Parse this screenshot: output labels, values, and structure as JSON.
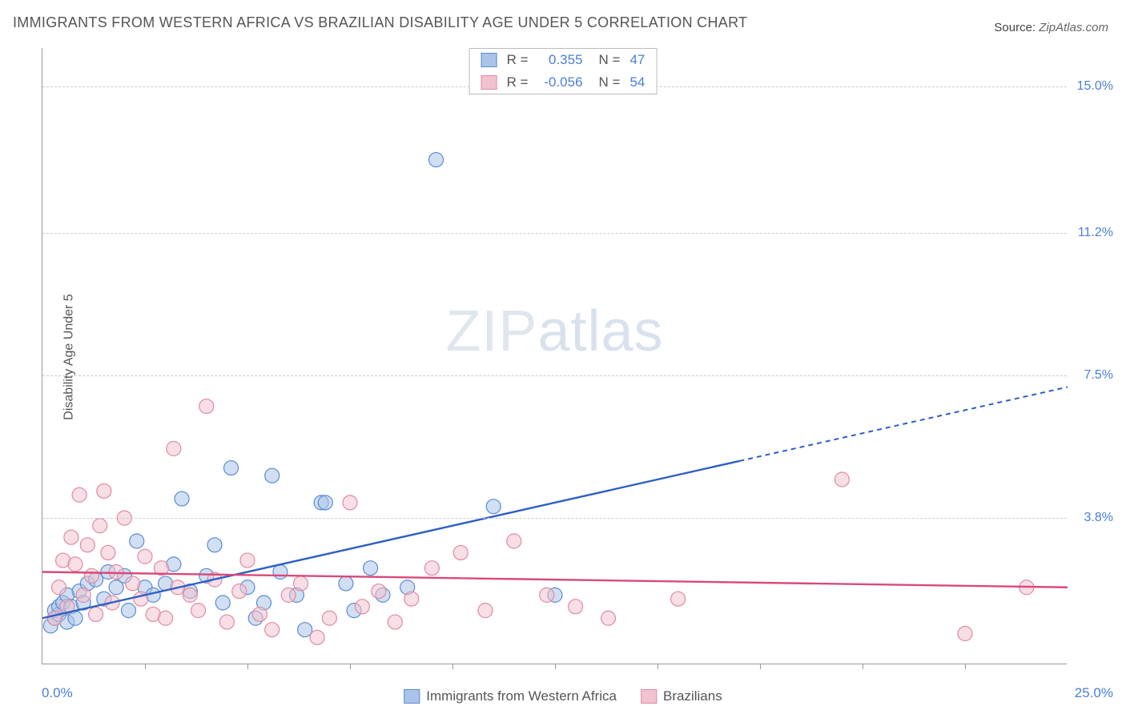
{
  "title": "IMMIGRANTS FROM WESTERN AFRICA VS BRAZILIAN DISABILITY AGE UNDER 5 CORRELATION CHART",
  "source_label": "Source:",
  "source_value": "ZipAtlas.com",
  "y_axis_title": "Disability Age Under 5",
  "watermark": "ZIPatlas",
  "chart": {
    "type": "scatter",
    "xlim": [
      0,
      25
    ],
    "ylim": [
      0,
      16
    ],
    "x_start_label": "0.0%",
    "x_end_label": "25.0%",
    "y_ticks": [
      {
        "v": 3.8,
        "label": "3.8%"
      },
      {
        "v": 7.5,
        "label": "7.5%"
      },
      {
        "v": 11.2,
        "label": "11.2%"
      },
      {
        "v": 15.0,
        "label": "15.0%"
      }
    ],
    "x_tick_step": 2.5,
    "background_color": "#ffffff",
    "grid_color": "#cccccc",
    "marker_radius": 9,
    "marker_opacity": 0.55,
    "series": [
      {
        "name": "Immigrants from Western Africa",
        "fill": "#a9c4e8",
        "stroke": "#5a8bd6",
        "line_color": "#2d5fc4",
        "r_value": "0.355",
        "n_value": "47",
        "trend": {
          "x1": 0,
          "y1": 1.2,
          "x2": 25,
          "y2": 7.2,
          "solid_until_x": 17
        },
        "points": [
          [
            0.2,
            1.0
          ],
          [
            0.3,
            1.2
          ],
          [
            0.3,
            1.4
          ],
          [
            0.4,
            1.3
          ],
          [
            0.4,
            1.5
          ],
          [
            0.5,
            1.6
          ],
          [
            0.6,
            1.1
          ],
          [
            0.6,
            1.8
          ],
          [
            0.7,
            1.5
          ],
          [
            0.8,
            1.2
          ],
          [
            0.9,
            1.9
          ],
          [
            1.0,
            1.6
          ],
          [
            1.1,
            2.1
          ],
          [
            1.3,
            2.2
          ],
          [
            1.5,
            1.7
          ],
          [
            1.6,
            2.4
          ],
          [
            1.8,
            2.0
          ],
          [
            2.0,
            2.3
          ],
          [
            2.1,
            1.4
          ],
          [
            2.3,
            3.2
          ],
          [
            2.5,
            2.0
          ],
          [
            2.7,
            1.8
          ],
          [
            3.0,
            2.1
          ],
          [
            3.2,
            2.6
          ],
          [
            3.4,
            4.3
          ],
          [
            3.6,
            1.9
          ],
          [
            4.0,
            2.3
          ],
          [
            4.2,
            3.1
          ],
          [
            4.4,
            1.6
          ],
          [
            4.6,
            5.1
          ],
          [
            5.0,
            2.0
          ],
          [
            5.2,
            1.2
          ],
          [
            5.4,
            1.6
          ],
          [
            5.6,
            4.9
          ],
          [
            5.8,
            2.4
          ],
          [
            6.2,
            1.8
          ],
          [
            6.4,
            0.9
          ],
          [
            6.8,
            4.2
          ],
          [
            6.9,
            4.2
          ],
          [
            7.4,
            2.1
          ],
          [
            7.6,
            1.4
          ],
          [
            8.0,
            2.5
          ],
          [
            8.3,
            1.8
          ],
          [
            8.9,
            2.0
          ],
          [
            9.6,
            13.1
          ],
          [
            11.0,
            4.1
          ],
          [
            12.5,
            1.8
          ]
        ]
      },
      {
        "name": "Brazilians",
        "fill": "#f2c3cf",
        "stroke": "#e08aa0",
        "line_color": "#d84a78",
        "r_value": "-0.056",
        "n_value": "54",
        "trend": {
          "x1": 0,
          "y1": 2.4,
          "x2": 25,
          "y2": 2.0,
          "solid_until_x": 25
        },
        "points": [
          [
            0.3,
            1.2
          ],
          [
            0.4,
            2.0
          ],
          [
            0.5,
            2.7
          ],
          [
            0.6,
            1.5
          ],
          [
            0.7,
            3.3
          ],
          [
            0.8,
            2.6
          ],
          [
            0.9,
            4.4
          ],
          [
            1.0,
            1.8
          ],
          [
            1.1,
            3.1
          ],
          [
            1.2,
            2.3
          ],
          [
            1.3,
            1.3
          ],
          [
            1.4,
            3.6
          ],
          [
            1.5,
            4.5
          ],
          [
            1.6,
            2.9
          ],
          [
            1.7,
            1.6
          ],
          [
            1.8,
            2.4
          ],
          [
            2.0,
            3.8
          ],
          [
            2.2,
            2.1
          ],
          [
            2.4,
            1.7
          ],
          [
            2.5,
            2.8
          ],
          [
            2.7,
            1.3
          ],
          [
            2.9,
            2.5
          ],
          [
            3.0,
            1.2
          ],
          [
            3.2,
            5.6
          ],
          [
            3.3,
            2.0
          ],
          [
            3.6,
            1.8
          ],
          [
            3.8,
            1.4
          ],
          [
            4.0,
            6.7
          ],
          [
            4.2,
            2.2
          ],
          [
            4.5,
            1.1
          ],
          [
            4.8,
            1.9
          ],
          [
            5.0,
            2.7
          ],
          [
            5.3,
            1.3
          ],
          [
            5.6,
            0.9
          ],
          [
            6.0,
            1.8
          ],
          [
            6.3,
            2.1
          ],
          [
            6.7,
            0.7
          ],
          [
            7.0,
            1.2
          ],
          [
            7.5,
            4.2
          ],
          [
            7.8,
            1.5
          ],
          [
            8.2,
            1.9
          ],
          [
            8.6,
            1.1
          ],
          [
            9.0,
            1.7
          ],
          [
            9.5,
            2.5
          ],
          [
            10.2,
            2.9
          ],
          [
            10.8,
            1.4
          ],
          [
            11.5,
            3.2
          ],
          [
            12.3,
            1.8
          ],
          [
            13.0,
            1.5
          ],
          [
            13.8,
            1.2
          ],
          [
            15.5,
            1.7
          ],
          [
            19.5,
            4.8
          ],
          [
            22.5,
            0.8
          ],
          [
            24.0,
            2.0
          ]
        ]
      }
    ]
  },
  "legend_bottom": [
    {
      "label": "Immigrants from Western Africa",
      "fill": "#a9c4e8",
      "stroke": "#5a8bd6"
    },
    {
      "label": "Brazilians",
      "fill": "#f2c3cf",
      "stroke": "#e08aa0"
    }
  ]
}
